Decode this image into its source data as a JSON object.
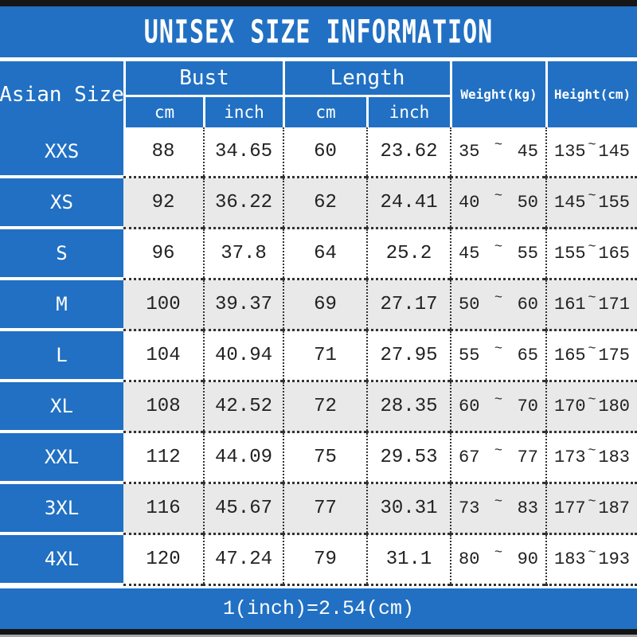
{
  "title": "UNISEX SIZE INFORMATION",
  "footer": "1(inch)=2.54(cm)",
  "colors": {
    "blue": "#2170c3",
    "alt_row": "#e9e9e9",
    "text": "#222222"
  },
  "table": {
    "size_col_header": "Asian Size",
    "tilde": "~",
    "groups": [
      {
        "label": "Bust",
        "sub": [
          "cm",
          "inch"
        ]
      },
      {
        "label": "Length",
        "sub": [
          "cm",
          "inch"
        ]
      }
    ],
    "weight_header": "Weight(kg)",
    "height_header": "Height(cm)",
    "rows": [
      {
        "size": "XXS",
        "bust_cm": "88",
        "bust_inch": "34.65",
        "length_cm": "60",
        "length_inch": "23.62",
        "weight_min": "35",
        "weight_max": "45",
        "height_min": "135",
        "height_max": "145"
      },
      {
        "size": "XS",
        "bust_cm": "92",
        "bust_inch": "36.22",
        "length_cm": "62",
        "length_inch": "24.41",
        "weight_min": "40",
        "weight_max": "50",
        "height_min": "145",
        "height_max": "155"
      },
      {
        "size": "S",
        "bust_cm": "96",
        "bust_inch": "37.8",
        "length_cm": "64",
        "length_inch": "25.2",
        "weight_min": "45",
        "weight_max": "55",
        "height_min": "155",
        "height_max": "165"
      },
      {
        "size": "M",
        "bust_cm": "100",
        "bust_inch": "39.37",
        "length_cm": "69",
        "length_inch": "27.17",
        "weight_min": "50",
        "weight_max": "60",
        "height_min": "161",
        "height_max": "171"
      },
      {
        "size": "L",
        "bust_cm": "104",
        "bust_inch": "40.94",
        "length_cm": "71",
        "length_inch": "27.95",
        "weight_min": "55",
        "weight_max": "65",
        "height_min": "165",
        "height_max": "175"
      },
      {
        "size": "XL",
        "bust_cm": "108",
        "bust_inch": "42.52",
        "length_cm": "72",
        "length_inch": "28.35",
        "weight_min": "60",
        "weight_max": "70",
        "height_min": "170",
        "height_max": "180"
      },
      {
        "size": "XXL",
        "bust_cm": "112",
        "bust_inch": "44.09",
        "length_cm": "75",
        "length_inch": "29.53",
        "weight_min": "67",
        "weight_max": "77",
        "height_min": "173",
        "height_max": "183"
      },
      {
        "size": "3XL",
        "bust_cm": "116",
        "bust_inch": "45.67",
        "length_cm": "77",
        "length_inch": "30.31",
        "weight_min": "73",
        "weight_max": "83",
        "height_min": "177",
        "height_max": "187"
      },
      {
        "size": "4XL",
        "bust_cm": "120",
        "bust_inch": "47.24",
        "length_cm": "79",
        "length_inch": "31.1",
        "weight_min": "80",
        "weight_max": "90",
        "height_min": "183",
        "height_max": "193"
      }
    ]
  },
  "chart_data": {
    "type": "table",
    "title": "UNISEX SIZE INFORMATION",
    "columns": [
      "Asian Size",
      "Bust cm",
      "Bust inch",
      "Length cm",
      "Length inch",
      "Weight(kg)",
      "Height(cm)"
    ],
    "rows": [
      [
        "XXS",
        88,
        34.65,
        60,
        23.62,
        "35~45",
        "135~145"
      ],
      [
        "XS",
        92,
        36.22,
        62,
        24.41,
        "40~50",
        "145~155"
      ],
      [
        "S",
        96,
        37.8,
        64,
        25.2,
        "45~55",
        "155~165"
      ],
      [
        "M",
        100,
        39.37,
        69,
        27.17,
        "50~60",
        "161~171"
      ],
      [
        "L",
        104,
        40.94,
        71,
        27.95,
        "55~65",
        "165~175"
      ],
      [
        "XL",
        108,
        42.52,
        72,
        28.35,
        "60~70",
        "170~180"
      ],
      [
        "XXL",
        112,
        44.09,
        75,
        29.53,
        "67~77",
        "173~183"
      ],
      [
        "3XL",
        116,
        45.67,
        77,
        30.31,
        "73~83",
        "177~187"
      ],
      [
        "4XL",
        120,
        47.24,
        79,
        31.1,
        "80~90",
        "183~193"
      ]
    ],
    "footnote": "1(inch)=2.54(cm)"
  }
}
